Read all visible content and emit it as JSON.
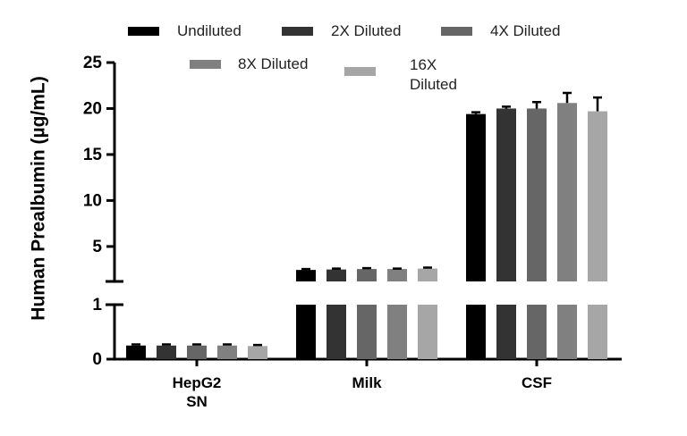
{
  "chart_data": {
    "type": "bar",
    "y_label": "Human Prealbumin (µg/mL)",
    "categories": [
      "HepG2 SN",
      "Milk",
      "CSF"
    ],
    "series": [
      {
        "name": "Undiluted",
        "color": "#000000",
        "values": [
          0.25,
          2.45,
          19.4
        ],
        "errors": [
          0.02,
          0.1,
          0.2
        ]
      },
      {
        "name": "2X Diluted",
        "color": "#333333",
        "values": [
          0.25,
          2.5,
          20.0
        ],
        "errors": [
          0.02,
          0.1,
          0.2
        ]
      },
      {
        "name": "4X Diluted",
        "color": "#666666",
        "values": [
          0.25,
          2.55,
          20.0
        ],
        "errors": [
          0.02,
          0.1,
          0.7
        ]
      },
      {
        "name": "8X Diluted",
        "color": "#808080",
        "values": [
          0.25,
          2.55,
          20.6
        ],
        "errors": [
          0.02,
          0.05,
          1.1
        ]
      },
      {
        "name": "16X Diluted",
        "color": "#a6a6a6",
        "values": [
          0.24,
          2.6,
          19.7
        ],
        "errors": [
          0.02,
          0.1,
          1.5
        ]
      }
    ],
    "y_segments": [
      {
        "ylim": [
          0,
          1
        ],
        "yticks": [
          0,
          1
        ]
      },
      {
        "ylim": [
          1.2,
          25
        ],
        "yticks": [
          5,
          10,
          15,
          20,
          25
        ]
      }
    ]
  }
}
